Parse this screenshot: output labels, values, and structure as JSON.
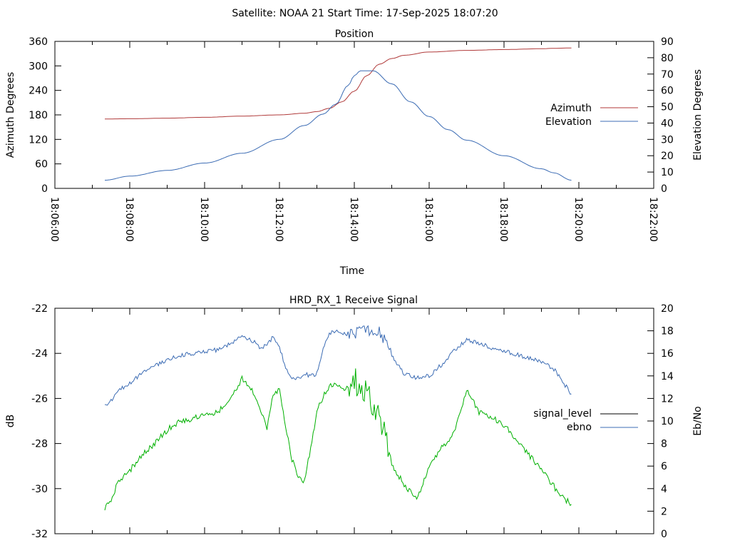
{
  "header": {
    "title": "Satellite: NOAA 21    Start Time: 17-Sep-2025 18:07:20"
  },
  "colors": {
    "azimuth": "#b03a3a",
    "elevation": "#3c6cb4",
    "signal": "#00b000",
    "ebno": "#3c6cb4",
    "legend_signal": "#000000"
  },
  "chart_data": [
    {
      "type": "line",
      "title": "Position",
      "xlabel": "Time",
      "ylabel": "Azimuth Degrees",
      "y2label": "Elevation Degrees",
      "xlim": [
        0,
        960
      ],
      "x_unit": "minutes since 18:06:00",
      "x_ticks": [
        "18:06:00",
        "18:08:00",
        "18:10:00",
        "18:12:00",
        "18:14:00",
        "18:16:00",
        "18:18:00",
        "18:20:00",
        "18:22:00"
      ],
      "ylim": [
        0,
        360
      ],
      "y_ticks": [
        "0",
        "60",
        "120",
        "180",
        "240",
        "300",
        "360"
      ],
      "y2lim": [
        0,
        90
      ],
      "y2_ticks": [
        "0",
        "10",
        "20",
        "30",
        "40",
        "50",
        "60",
        "70",
        "80",
        "90"
      ],
      "legend_position": "right",
      "series": [
        {
          "name": "Azimuth",
          "axis": "y",
          "x": [
            80,
            120,
            180,
            240,
            300,
            360,
            400,
            420,
            440,
            460,
            480,
            500,
            520,
            540,
            560,
            600,
            660,
            720,
            780,
            800,
            828
          ],
          "y": [
            170,
            170.5,
            172,
            174,
            177,
            180,
            184,
            188,
            196,
            212,
            238,
            276,
            304,
            318,
            326,
            334,
            338,
            340,
            342,
            343,
            344
          ]
        },
        {
          "name": "Elevation",
          "axis": "y2",
          "x": [
            80,
            120,
            180,
            240,
            300,
            360,
            400,
            430,
            450,
            470,
            480,
            490,
            510,
            540,
            570,
            600,
            630,
            660,
            720,
            780,
            800,
            828
          ],
          "y": [
            5,
            7.5,
            11,
            15.5,
            21.5,
            30,
            38.5,
            45.5,
            51.5,
            63,
            69,
            72,
            72,
            64,
            53,
            44,
            36,
            29.5,
            20,
            12,
            9.5,
            5
          ]
        }
      ]
    },
    {
      "type": "line",
      "title": "HRD_RX_1 Receive Signal",
      "ylabel": "dB",
      "y2label": "Eb/No",
      "xlim": [
        0,
        960
      ],
      "ylim": [
        -32,
        -22
      ],
      "y_ticks": [
        "-32",
        "-30",
        "-28",
        "-26",
        "-24",
        "-22"
      ],
      "y2lim": [
        0,
        20
      ],
      "y2_ticks": [
        "0",
        "2",
        "4",
        "6",
        "8",
        "10",
        "12",
        "14",
        "16",
        "18",
        "20"
      ],
      "legend_position": "right",
      "series": [
        {
          "name": "signal_level",
          "axis": "y",
          "x": [
            80,
            90,
            100,
            120,
            140,
            160,
            180,
            200,
            220,
            240,
            260,
            270,
            280,
            300,
            320,
            330,
            340,
            350,
            360,
            370,
            380,
            390,
            400,
            410,
            420,
            430,
            440,
            450,
            460,
            480,
            500,
            520,
            540,
            560,
            580,
            600,
            620,
            640,
            660,
            680,
            700,
            720,
            740,
            760,
            780,
            800,
            810,
            828
          ],
          "y": [
            -30.9,
            -30.5,
            -29.8,
            -29.2,
            -28.5,
            -28.0,
            -27.4,
            -27.0,
            -26.9,
            -26.7,
            -26.6,
            -26.4,
            -26.1,
            -25.1,
            -25.8,
            -26.5,
            -27.3,
            -25.8,
            -25.6,
            -27.2,
            -28.7,
            -29.5,
            -29.7,
            -28.2,
            -26.6,
            -25.9,
            -25.5,
            -25.3,
            -25.6,
            -25.3,
            -25.5,
            -26.8,
            -29.0,
            -29.8,
            -30.5,
            -29.0,
            -28.2,
            -27.5,
            -25.6,
            -26.6,
            -26.8,
            -27.2,
            -27.8,
            -28.5,
            -29.2,
            -29.9,
            -30.3,
            -30.7
          ]
        },
        {
          "name": "ebno",
          "axis": "y2",
          "x": [
            80,
            90,
            100,
            120,
            140,
            160,
            180,
            200,
            220,
            240,
            260,
            270,
            280,
            300,
            320,
            330,
            340,
            350,
            360,
            370,
            380,
            390,
            400,
            410,
            420,
            430,
            440,
            450,
            460,
            480,
            500,
            520,
            540,
            560,
            580,
            600,
            620,
            640,
            660,
            680,
            700,
            720,
            740,
            760,
            780,
            800,
            810,
            828
          ],
          "y": [
            11.3,
            11.8,
            12.6,
            13.4,
            14.2,
            14.9,
            15.4,
            15.8,
            16.0,
            16.2,
            16.3,
            16.5,
            16.8,
            17.6,
            17.0,
            16.4,
            16.8,
            17.5,
            16.5,
            14.8,
            13.8,
            13.8,
            14.2,
            14.0,
            14.2,
            16.5,
            17.8,
            18.0,
            17.7,
            17.8,
            18.1,
            18.0,
            15.8,
            14.2,
            13.8,
            14.0,
            15.0,
            16.2,
            17.2,
            16.9,
            16.5,
            16.2,
            15.9,
            15.6,
            15.2,
            14.6,
            13.8,
            12.4
          ]
        }
      ]
    }
  ]
}
